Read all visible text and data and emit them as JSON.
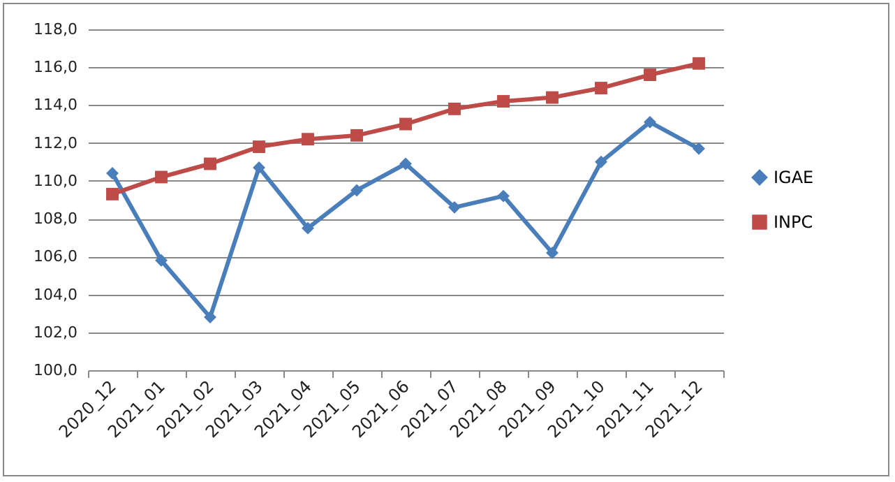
{
  "chart_data": {
    "type": "line",
    "categories": [
      "2020_12",
      "2021_01",
      "2021_02",
      "2021_03",
      "2021_04",
      "2021_05",
      "2021_06",
      "2021_07",
      "2021_08",
      "2021_09",
      "2021_10",
      "2021_11",
      "2021_12"
    ],
    "series": [
      {
        "name": "IGAE",
        "color": "#4a7ebb",
        "marker": "diamond",
        "values": [
          110.4,
          105.8,
          102.8,
          110.7,
          107.5,
          109.5,
          110.9,
          108.6,
          109.2,
          106.2,
          111.0,
          113.1,
          111.7
        ]
      },
      {
        "name": "INPC",
        "color": "#be4b48",
        "marker": "square",
        "values": [
          109.3,
          110.2,
          110.9,
          111.8,
          112.2,
          112.4,
          113.0,
          113.8,
          114.2,
          114.4,
          114.9,
          115.6,
          116.2
        ]
      }
    ],
    "ylim": [
      100,
      118
    ],
    "yticks": [
      {
        "value": 100,
        "label": "100,0"
      },
      {
        "value": 102,
        "label": "102,0"
      },
      {
        "value": 104,
        "label": "104,0"
      },
      {
        "value": 106,
        "label": "106,0"
      },
      {
        "value": 108,
        "label": "108,0"
      },
      {
        "value": 110,
        "label": "110,0"
      },
      {
        "value": 112,
        "label": "112,0"
      },
      {
        "value": 114,
        "label": "114,0"
      },
      {
        "value": 116,
        "label": "116,0"
      },
      {
        "value": 118,
        "label": "118,0"
      }
    ],
    "grid": "y",
    "legend": "right",
    "line_style": "solid"
  }
}
